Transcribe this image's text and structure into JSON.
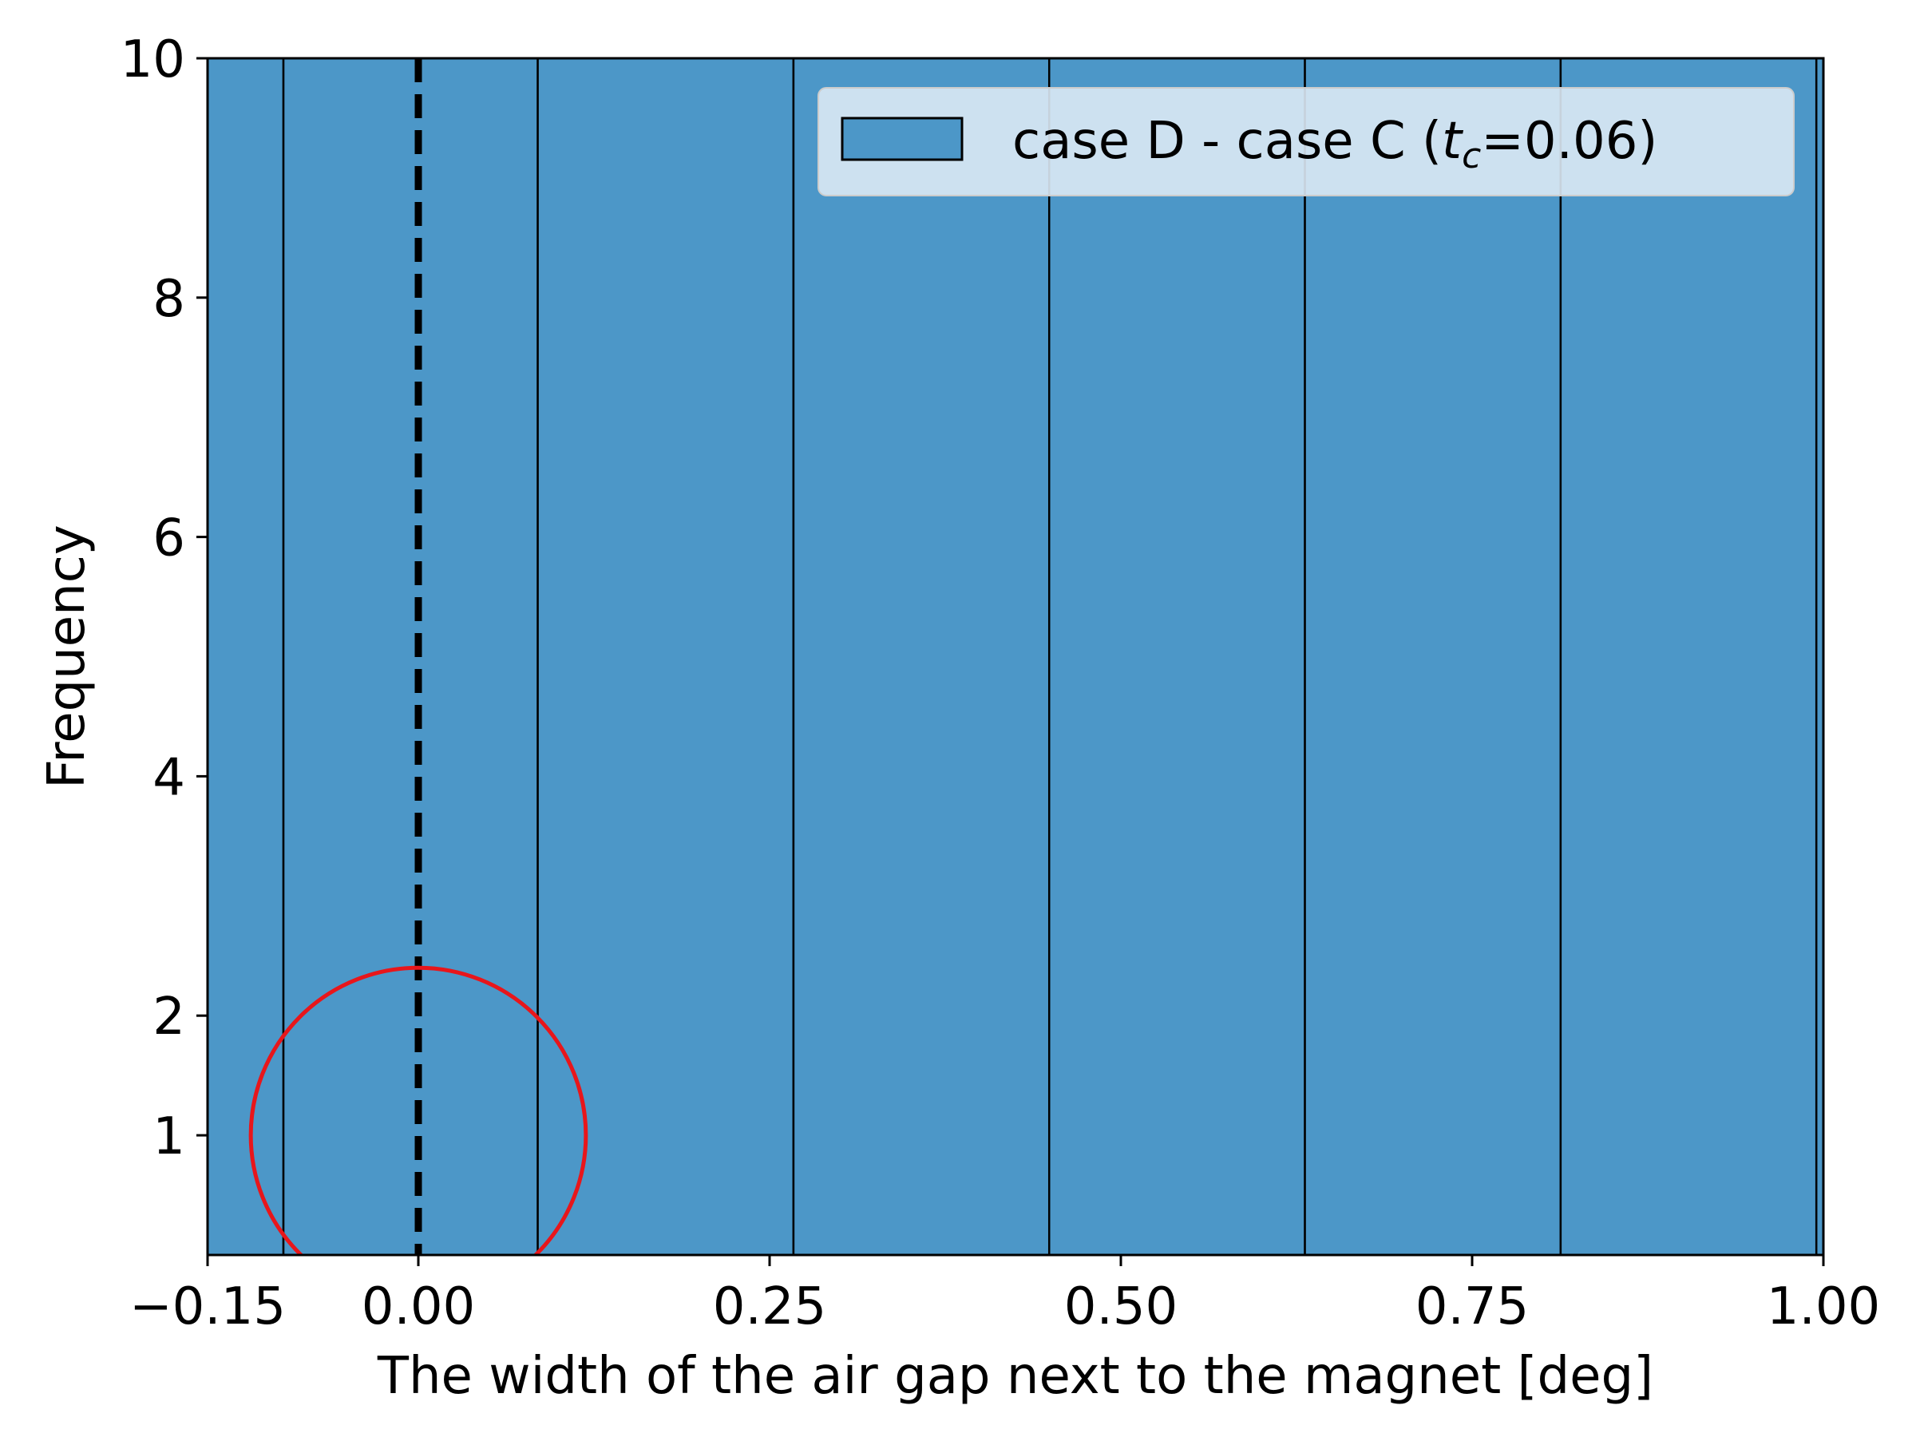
{
  "chart_data": {
    "type": "bar",
    "xlabel": "The width of the air gap next to the magnet [deg]",
    "ylabel": "Frequency",
    "xlim": [
      -0.15,
      1.0
    ],
    "ylim": [
      0,
      10
    ],
    "x_ticks": [
      -0.15,
      0.0,
      0.25,
      0.5,
      0.75,
      1.0
    ],
    "x_tick_labels": [
      "−0.15",
      "0.00",
      "0.25",
      "0.50",
      "0.75",
      "1.00"
    ],
    "y_ticks": [
      1,
      2,
      4,
      6,
      8,
      10
    ],
    "y_tick_labels": [
      "1",
      "2",
      "4",
      "6",
      "8",
      "10"
    ],
    "bin_edges": [
      -0.15,
      -0.096,
      0.085,
      0.267,
      0.449,
      0.631,
      0.813,
      0.995,
      1.0
    ],
    "values": [
      10,
      10,
      10,
      10,
      10,
      10,
      10,
      10
    ],
    "series": [
      {
        "name_prefix": "case D - case C (",
        "name_var": "t",
        "name_sub": "c",
        "name_suffix": "=0.06)"
      }
    ],
    "reference_line": {
      "x": 0.0,
      "style": "dashed",
      "color": "#000000"
    },
    "highlight_circle": {
      "center": [
        0.0,
        1.0
      ],
      "color": "#e8161b"
    },
    "grid": false,
    "legend_position": "top-right",
    "colors": {
      "bar": "#4c97c8",
      "edge": "#000000",
      "circle": "#e8161b",
      "legend_bg": "#dbe9f4"
    }
  }
}
